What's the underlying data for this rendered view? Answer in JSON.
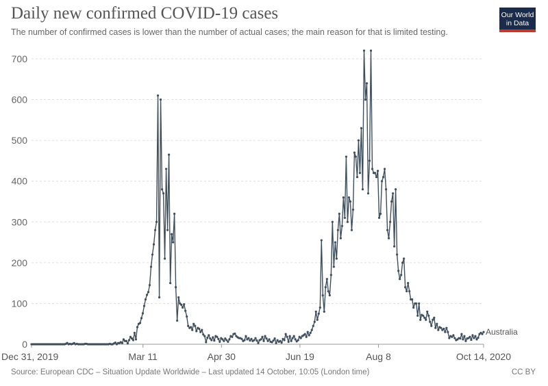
{
  "header": {
    "title": "Daily new confirmed COVID-19 cases",
    "subtitle": "The number of confirmed cases is lower than the number of actual cases; the main reason for that is limited testing."
  },
  "logo": {
    "line1": "Our World",
    "line2": "in Data",
    "bg_color": "#1a2b4c",
    "bar_color": "#c0392b"
  },
  "footer": {
    "source": "Source: European CDC – Situation Update Worldwide – Last updated 14 October, 10:05 (London time)",
    "license": "CC BY"
  },
  "chart_data": {
    "type": "line",
    "title": "Daily new confirmed COVID-19 cases",
    "xlabel": "",
    "ylabel": "",
    "x_start": "2019-12-31",
    "x_end": "2020-10-14",
    "ylim": [
      0,
      720
    ],
    "y_ticks": [
      0,
      100,
      200,
      300,
      400,
      500,
      600,
      700
    ],
    "x_tick_labels": [
      {
        "label": "Dec 31, 2019",
        "date": "2019-12-31"
      },
      {
        "label": "Mar 11",
        "date": "2020-03-11"
      },
      {
        "label": "Apr 30",
        "date": "2020-04-30"
      },
      {
        "label": "Jun 19",
        "date": "2020-06-19"
      },
      {
        "label": "Aug 8",
        "date": "2020-08-08"
      },
      {
        "label": "Oct 14, 2020",
        "date": "2020-10-14"
      }
    ],
    "grid": "horizontal dashed",
    "line_color": "#3f4e5c",
    "series": [
      {
        "name": "Australia",
        "values": [
          0,
          0,
          0,
          0,
          0,
          0,
          0,
          0,
          0,
          0,
          0,
          0,
          0,
          0,
          0,
          0,
          0,
          0,
          0,
          0,
          0,
          0,
          0,
          0,
          0,
          1,
          3,
          0,
          1,
          0,
          1,
          3,
          0,
          1,
          0,
          0,
          0,
          0,
          0,
          1,
          1,
          0,
          0,
          0,
          0,
          0,
          0,
          0,
          0,
          0,
          0,
          0,
          0,
          0,
          0,
          0,
          0,
          1,
          0,
          0,
          2,
          4,
          0,
          3,
          3,
          5,
          3,
          12,
          8,
          8,
          2,
          10,
          18,
          14,
          10,
          28,
          12,
          42,
          50,
          52,
          64,
          76,
          94,
          110,
          121,
          128,
          145,
          190,
          220,
          245,
          280,
          300,
          610,
          115,
          600,
          380,
          370,
          210,
          430,
          280,
          465,
          150,
          270,
          250,
          320,
          140,
          58,
          115,
          100,
          97,
          90,
          98,
          82,
          68,
          45,
          40,
          42,
          35,
          50,
          45,
          32,
          40,
          38,
          30,
          35,
          24,
          20,
          5,
          16,
          22,
          14,
          10,
          17,
          9,
          20,
          18,
          13,
          6,
          15,
          12,
          8,
          14,
          10,
          6,
          12,
          20,
          18,
          25,
          26,
          20,
          17,
          15,
          15,
          13,
          8,
          10,
          20,
          12,
          15,
          9,
          13,
          8,
          10,
          15,
          9,
          3,
          10,
          12,
          18,
          8,
          20,
          14,
          8,
          12,
          6,
          5,
          9,
          14,
          3,
          10,
          6,
          8,
          4,
          13,
          10,
          25,
          18,
          6,
          20,
          8,
          15,
          20,
          12,
          7,
          10,
          18,
          15,
          20,
          22,
          25,
          18,
          30,
          22,
          28,
          35,
          45,
          55,
          80,
          60,
          75,
          90,
          255,
          120,
          80,
          140,
          160,
          130,
          120,
          170,
          300,
          190,
          250,
          210,
          280,
          320,
          260,
          290,
          360,
          310,
          460,
          300,
          360,
          350,
          280,
          330,
          470,
          460,
          410,
          500,
          420,
          530,
          380,
          720,
          600,
          640,
          370,
          450,
          720,
          430,
          420,
          420,
          410,
          425,
          310,
          320,
          400,
          410,
          430,
          380,
          280,
          260,
          300,
          350,
          370,
          240,
          380,
          220,
          180,
          160,
          170,
          200,
          210,
          140,
          130,
          150,
          130,
          110,
          110,
          90,
          100,
          100,
          70,
          100,
          60,
          72,
          70,
          65,
          60,
          80,
          70,
          55,
          45,
          60,
          65,
          40,
          50,
          35,
          42,
          40,
          35,
          38,
          30,
          40,
          30,
          15,
          20,
          18,
          22,
          15,
          10,
          12,
          15,
          14,
          25,
          12,
          20,
          8,
          14,
          15,
          18,
          11,
          22,
          15,
          20,
          12,
          16,
          25,
          28,
          25,
          30
        ]
      }
    ]
  }
}
